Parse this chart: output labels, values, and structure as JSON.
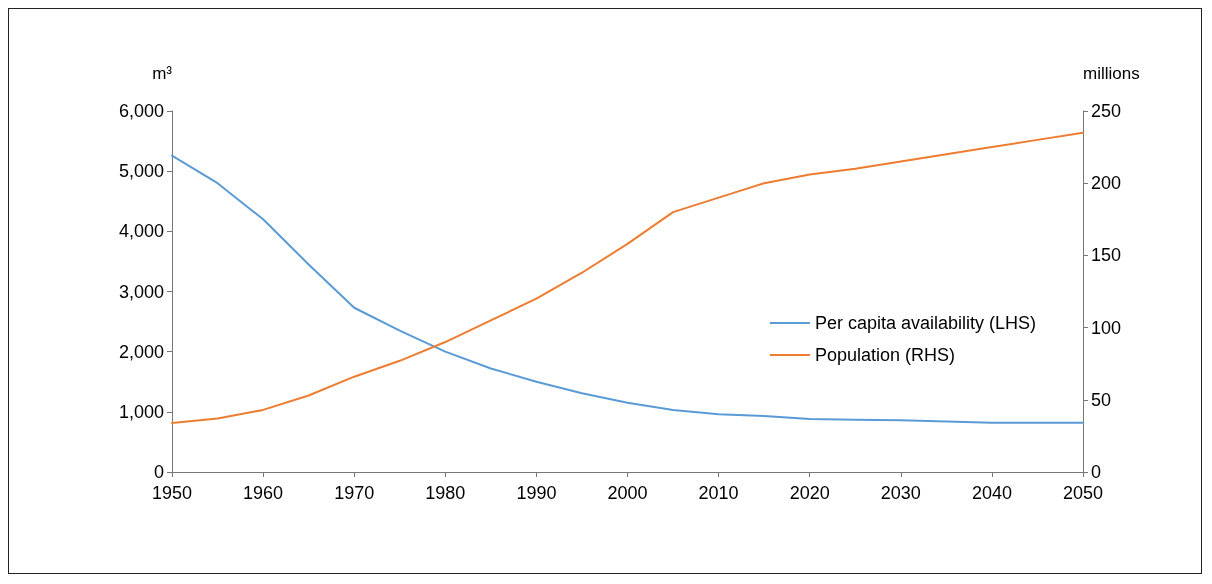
{
  "chart_data": {
    "type": "line",
    "ylabel": "m³",
    "y2label": "millions",
    "x": [
      1950,
      1955,
      1960,
      1965,
      1970,
      1975,
      1980,
      1985,
      1990,
      1995,
      2000,
      2005,
      2010,
      2015,
      2020,
      2025,
      2030,
      2035,
      2040,
      2045,
      2050
    ],
    "series": [
      {
        "name": "Per capita availability (LHS)",
        "color": "#5b9bd5",
        "values": [
          5260,
          4800,
          4200,
          3450,
          2730,
          2350,
          2000,
          1720,
          1500,
          1310,
          1150,
          1030,
          960,
          930,
          880,
          870,
          860,
          840,
          820,
          820,
          820
        ]
      },
      {
        "name": "Population (RHS)",
        "color": "#ed7d31",
        "axis": "y2",
        "x": [
          1950,
          1955,
          1960,
          1965,
          1970,
          1975,
          1980,
          1985,
          1990,
          1995,
          2000,
          2005,
          2010,
          2015,
          2020,
          2025,
          2030,
          2035,
          2040,
          2045,
          2050
        ],
        "values": [
          34,
          37,
          43,
          53,
          66,
          77,
          90,
          105,
          120,
          138,
          158,
          180,
          190,
          200,
          206,
          210,
          215,
          220,
          225,
          230,
          235
        ]
      }
    ],
    "xlim": [
      1950,
      2050
    ],
    "xticks": [
      1950,
      1960,
      1970,
      1980,
      1990,
      2000,
      2010,
      2020,
      2030,
      2040,
      2050
    ],
    "ylim": [
      0,
      6000
    ],
    "yticks": [
      0,
      {
        "value": 1000,
        "label": "1,000"
      },
      {
        "value": 2000,
        "label": "2,000"
      },
      {
        "value": 3000,
        "label": "3,000"
      },
      {
        "value": 4000,
        "label": "4,000"
      },
      {
        "value": 5000,
        "label": "5,000"
      },
      {
        "value": 6000,
        "label": "6,000"
      }
    ],
    "y2lim": [
      0,
      250
    ],
    "y2ticks": [
      0,
      50,
      100,
      150,
      200,
      250
    ],
    "grid": false,
    "legend": "right",
    "marker": "none",
    "line_style": "solid"
  }
}
